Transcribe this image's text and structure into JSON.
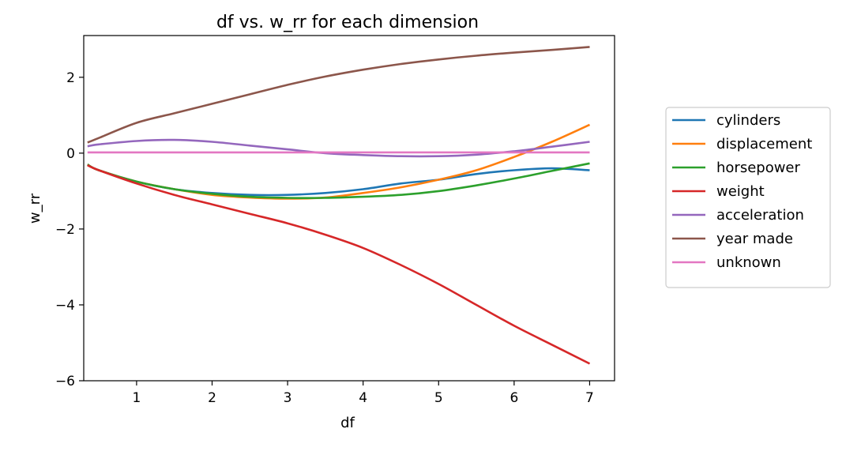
{
  "chart_data": {
    "type": "line",
    "title": "df vs. w_rr for each dimension",
    "xlabel": "df",
    "ylabel": "w_rr",
    "xlim": [
      0.3,
      7.33
    ],
    "ylim": [
      -6.0,
      3.1
    ],
    "xticks": [
      1,
      2,
      3,
      4,
      5,
      6,
      7
    ],
    "yticks": [
      -6,
      -4,
      -2,
      0,
      2
    ],
    "ytick_labels": [
      "−6",
      "−4",
      "−2",
      "0",
      "2"
    ],
    "grid": false,
    "legend_position": "outside-right",
    "x": [
      0.35,
      0.5,
      1,
      1.5,
      2,
      2.5,
      3,
      3.5,
      4,
      4.5,
      5,
      5.5,
      6,
      6.5,
      7
    ],
    "series": [
      {
        "name": "cylinders",
        "color": "#1f77b4",
        "values": [
          -0.3,
          -0.45,
          -0.75,
          -0.95,
          -1.05,
          -1.1,
          -1.1,
          -1.05,
          -0.95,
          -0.8,
          -0.7,
          -0.55,
          -0.45,
          -0.4,
          -0.45
        ]
      },
      {
        "name": "displacement",
        "color": "#ff7f0e",
        "values": [
          -0.3,
          -0.45,
          -0.75,
          -0.95,
          -1.1,
          -1.17,
          -1.2,
          -1.17,
          -1.05,
          -0.9,
          -0.7,
          -0.45,
          -0.1,
          0.3,
          0.75
        ]
      },
      {
        "name": "horsepower",
        "color": "#2ca02c",
        "values": [
          -0.3,
          -0.45,
          -0.75,
          -0.95,
          -1.07,
          -1.15,
          -1.18,
          -1.18,
          -1.15,
          -1.1,
          -1.0,
          -0.85,
          -0.67,
          -0.47,
          -0.27
        ]
      },
      {
        "name": "weight",
        "color": "#d62728",
        "values": [
          -0.32,
          -0.45,
          -0.8,
          -1.1,
          -1.35,
          -1.6,
          -1.85,
          -2.15,
          -2.5,
          -2.95,
          -3.45,
          -4.0,
          -4.55,
          -5.05,
          -5.55
        ]
      },
      {
        "name": "acceleration",
        "color": "#9467bd",
        "values": [
          0.18,
          0.23,
          0.32,
          0.35,
          0.3,
          0.2,
          0.1,
          0.0,
          -0.05,
          -0.08,
          -0.08,
          -0.04,
          0.05,
          0.17,
          0.3
        ]
      },
      {
        "name": "year made",
        "color": "#8c564b",
        "values": [
          0.28,
          0.4,
          0.8,
          1.05,
          1.3,
          1.55,
          1.8,
          2.02,
          2.2,
          2.35,
          2.47,
          2.57,
          2.65,
          2.72,
          2.8
        ]
      },
      {
        "name": "unknown",
        "color": "#e377c2",
        "values": [
          0.02,
          0.02,
          0.02,
          0.02,
          0.02,
          0.02,
          0.02,
          0.02,
          0.02,
          0.02,
          0.02,
          0.02,
          0.02,
          0.02,
          0.02
        ]
      }
    ]
  }
}
